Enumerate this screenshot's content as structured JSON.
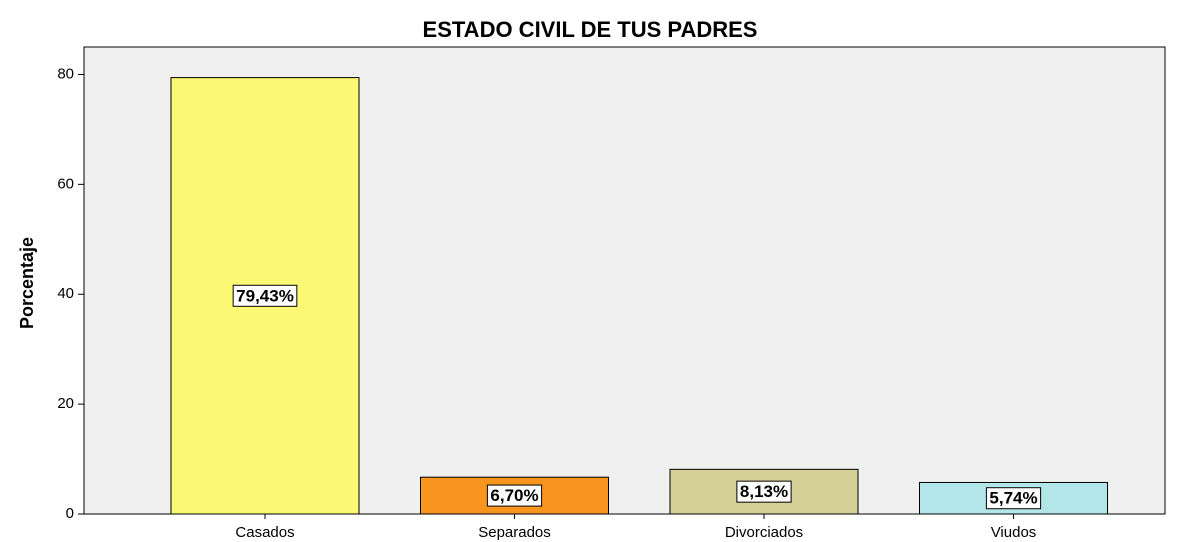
{
  "chart_data": {
    "type": "bar",
    "title": "ESTADO CIVIL DE TUS  PADRES",
    "y_label": "Porcentaje",
    "categories": [
      "Casados",
      "Separados",
      "Divorciados",
      "Viudos"
    ],
    "values": [
      79.43,
      6.7,
      8.13,
      5.74
    ],
    "value_labels": [
      "79,43%",
      "6,70%",
      "8,13%",
      "5,74%"
    ],
    "colors": [
      "#fbf874",
      "#f7951f",
      "#d5cf98",
      "#b3e6e8"
    ],
    "ylim": [
      0,
      85
    ],
    "yticks": [
      0,
      20,
      40,
      60,
      80
    ]
  }
}
